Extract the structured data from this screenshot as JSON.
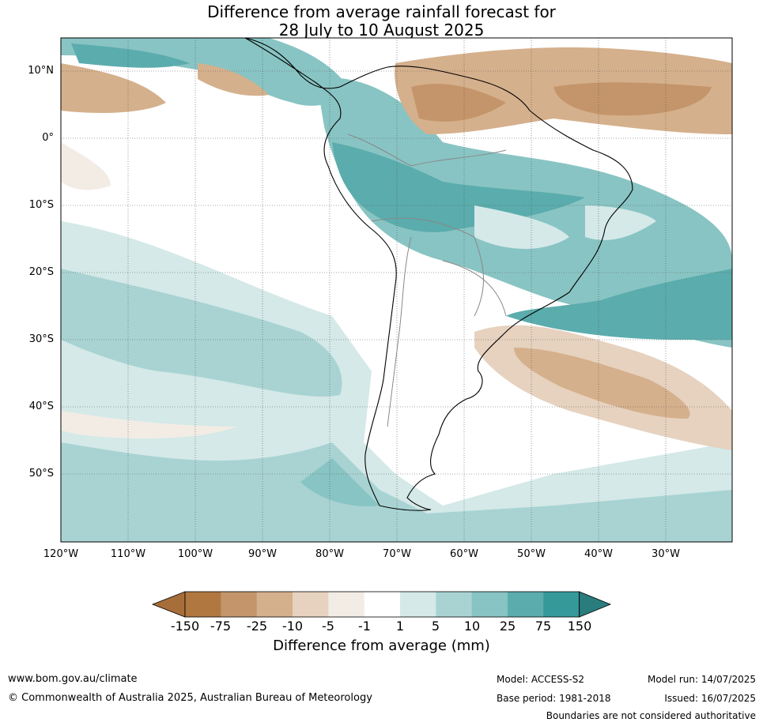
{
  "title": {
    "line1": "Difference from average rainfall forecast for",
    "line2": "28 July to 10 August 2025"
  },
  "map": {
    "region": "South America",
    "lat_range": [
      -60,
      15
    ],
    "lon_range": [
      -120,
      -20
    ],
    "lat_labels": [
      "10°N",
      "0°",
      "10°S",
      "20°S",
      "30°S",
      "40°S",
      "50°S"
    ],
    "lon_labels": [
      "120°W",
      "110°W",
      "100°W",
      "90°W",
      "80°W",
      "70°W",
      "60°W",
      "50°W",
      "40°W",
      "30°W"
    ]
  },
  "legend": {
    "title": "Difference from average (mm)",
    "ticks": [
      "-150",
      "-75",
      "-25",
      "-10",
      "-5",
      "-1",
      "1",
      "5",
      "10",
      "25",
      "75",
      "150"
    ],
    "colors": [
      "#a86e3a",
      "#b07840",
      "#c4956a",
      "#d5b08c",
      "#e6d2bf",
      "#f2ece5",
      "#ffffff",
      "#d4e9e8",
      "#a9d3d3",
      "#88c4c3",
      "#5bacad",
      "#35999a",
      "#2a7c7d"
    ]
  },
  "footer": {
    "website": "www.bom.gov.au/climate",
    "copyright": "© Commonwealth of Australia 2025, Australian Bureau of Meteorology",
    "model": "Model: ACCESS-S2",
    "base_period": "Base period: 1981-2018",
    "model_run": "Model run: 14/07/2025",
    "issued": "Issued: 16/07/2025",
    "boundaries_note": "Boundaries are not considered authoritative"
  }
}
